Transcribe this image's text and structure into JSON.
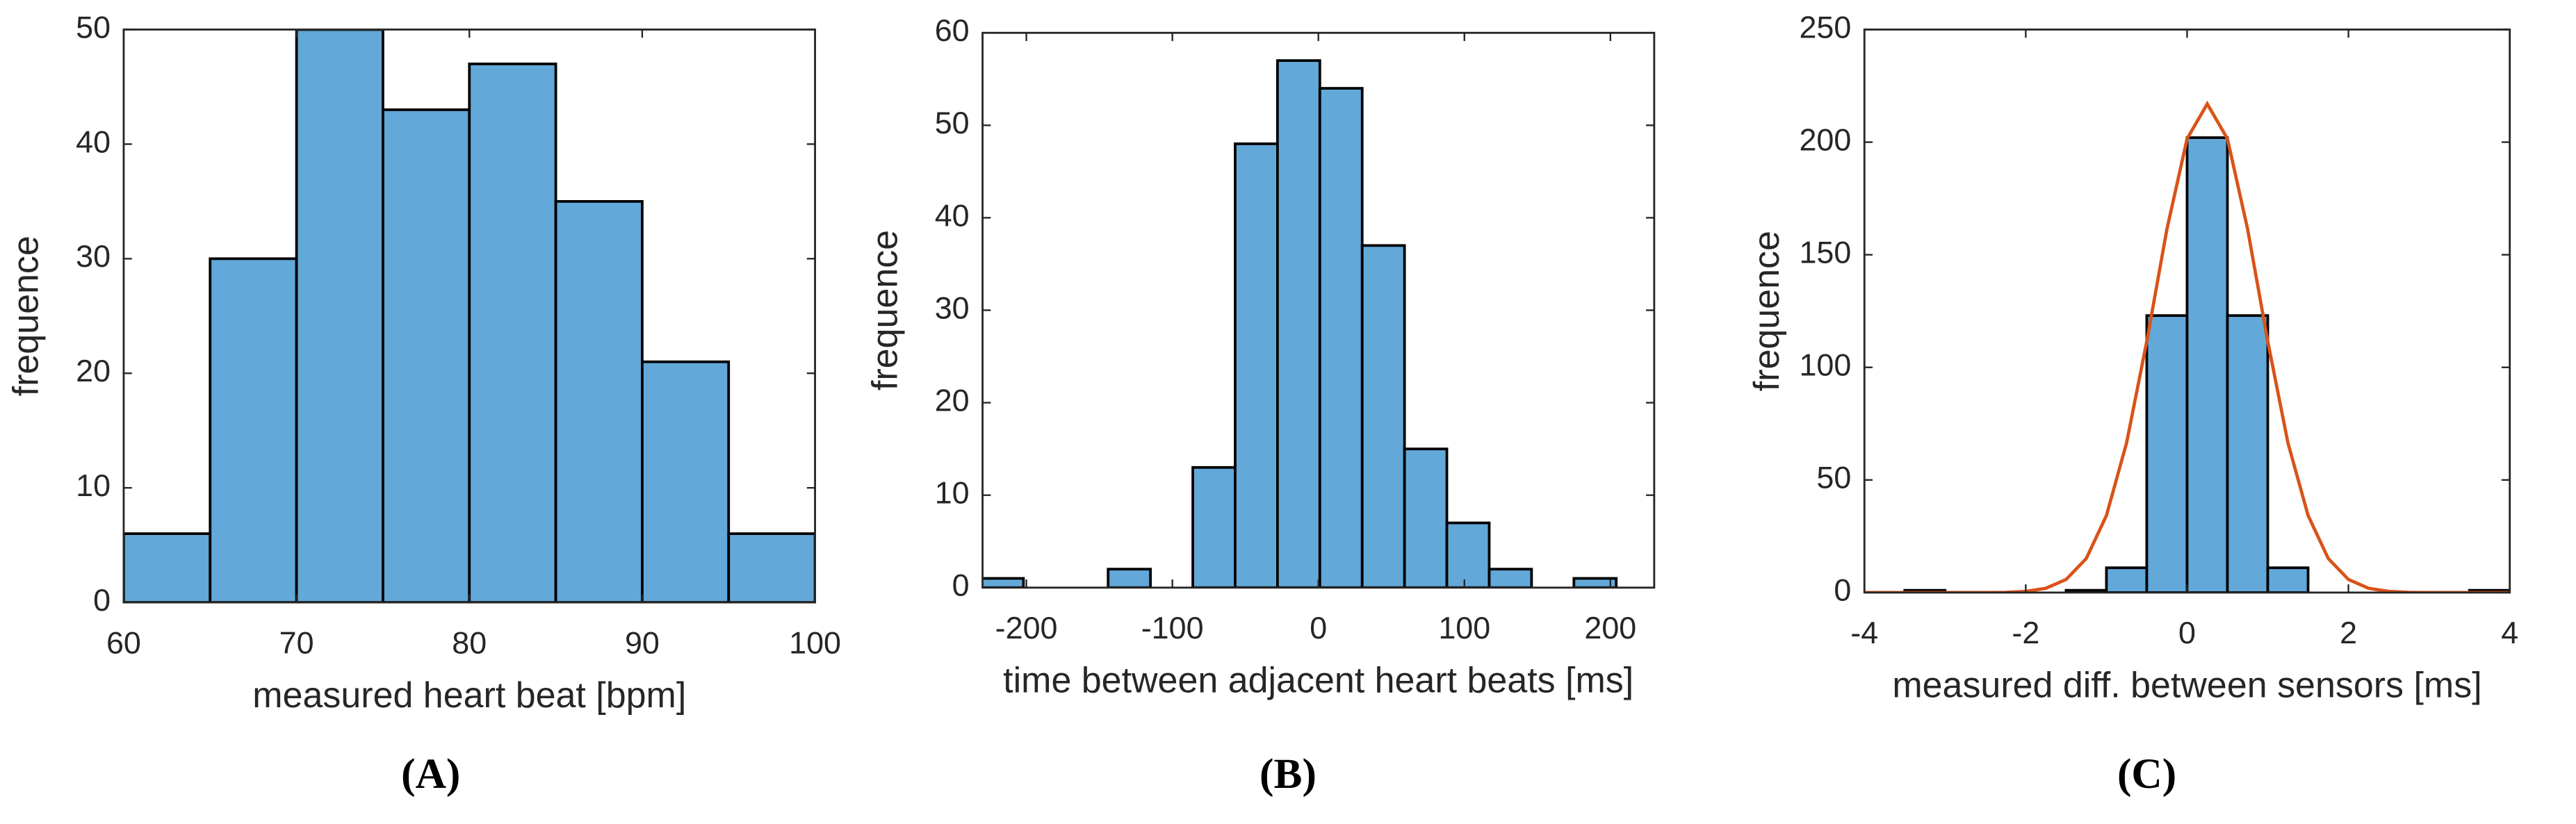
{
  "chart_data": [
    {
      "type": "histogram",
      "caption": "(A)",
      "xlabel": "measured heart beat [bpm]",
      "ylabel": "frequence",
      "bins": [
        60,
        65,
        70,
        75,
        80,
        85,
        90,
        95,
        100
      ],
      "values": [
        6,
        30,
        50,
        43,
        47,
        35,
        21,
        6
      ],
      "color": "#62a8d9",
      "xlim": [
        60,
        100
      ],
      "ylim": [
        0,
        50
      ],
      "xticks": [
        60,
        70,
        80,
        90,
        100
      ],
      "yticks": [
        0,
        10,
        20,
        30,
        40,
        50
      ]
    },
    {
      "type": "histogram",
      "caption": "(B)",
      "xlabel": "time between adjacent heart beats [ms]",
      "ylabel": "frequence",
      "bins": [
        -231,
        -202,
        -173,
        -144,
        -115,
        -86,
        -57,
        -28,
        1,
        30,
        59,
        88,
        117,
        146,
        175,
        204
      ],
      "values": [
        1,
        0,
        0,
        2,
        0,
        13,
        48,
        57,
        54,
        37,
        15,
        7,
        2,
        0,
        1
      ],
      "color": "#62a8d9",
      "xlim": [
        -230,
        230
      ],
      "ylim": [
        0,
        60
      ],
      "xticks": [
        -200,
        -100,
        0,
        100,
        200
      ],
      "yticks": [
        0,
        10,
        20,
        30,
        40,
        50,
        60
      ]
    },
    {
      "type": "histogram",
      "caption": "(C)",
      "xlabel": "measured diff. between sensors [ms]",
      "ylabel": "frequence",
      "bins": [
        -4,
        -3.5,
        -3,
        -2.5,
        -2,
        -1.5,
        -1,
        -0.5,
        0,
        0.5,
        1,
        1.5,
        2,
        2.5,
        3,
        3.5,
        4
      ],
      "values": [
        0,
        1,
        0,
        0,
        0,
        1,
        11,
        123,
        202,
        123,
        11,
        0,
        0,
        0,
        0,
        1
      ],
      "color": "#62a8d9",
      "xlim": [
        -4,
        4
      ],
      "ylim": [
        0,
        250
      ],
      "xticks": [
        -4,
        -2,
        0,
        2,
        4
      ],
      "yticks": [
        0,
        50,
        100,
        150,
        200,
        250
      ],
      "line": {
        "color": "#d95319",
        "x": [
          -4,
          -3.75,
          -3.5,
          -3.25,
          -3,
          -2.75,
          -2.5,
          -2.25,
          -2,
          -1.75,
          -1.5,
          -1.25,
          -1,
          -0.75,
          -0.5,
          -0.25,
          0,
          0.25,
          0.5,
          0.75,
          1,
          1.25,
          1.5,
          1.75,
          2,
          2.25,
          2.5,
          2.75,
          3,
          3.25,
          3.5,
          3.75,
          4
        ],
        "values": [
          0,
          0,
          0,
          0,
          0,
          0,
          0,
          0.1,
          0.5,
          1.9,
          5.8,
          15.1,
          34.2,
          66.5,
          111.5,
          161.4,
          201.5,
          217,
          201.5,
          161.4,
          111.5,
          66.5,
          34.2,
          15.1,
          5.8,
          1.9,
          0.5,
          0.1,
          0,
          0,
          0,
          0,
          0
        ]
      }
    }
  ]
}
